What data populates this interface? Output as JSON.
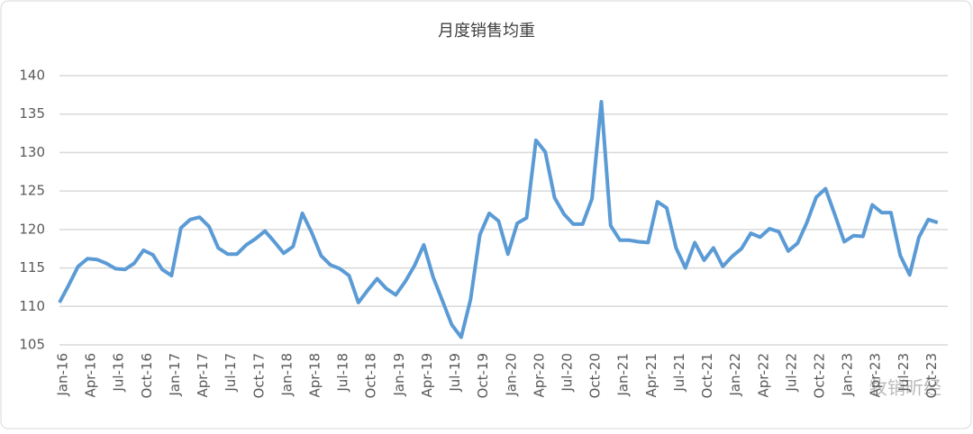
{
  "chart_data": {
    "type": "line",
    "title": "月度销售均重",
    "categories": [
      "Jan-16",
      null,
      null,
      "Apr-16",
      null,
      null,
      "Jul-16",
      null,
      null,
      "Oct-16",
      null,
      null,
      "Jan-17",
      null,
      null,
      "Apr-17",
      null,
      null,
      "Jul-17",
      null,
      null,
      "Oct-17",
      null,
      null,
      "Jan-18",
      null,
      null,
      "Apr-18",
      null,
      null,
      "Jul-18",
      null,
      null,
      "Oct-18",
      null,
      null,
      "Jan-19",
      null,
      null,
      "Apr-19",
      null,
      null,
      "Jul-19",
      null,
      null,
      "Oct-19",
      null,
      null,
      "Jan-20",
      null,
      null,
      "Apr-20",
      null,
      null,
      "Jul-20",
      null,
      null,
      "Oct-20",
      null,
      null,
      "Jan-21",
      null,
      null,
      "Apr-21",
      null,
      null,
      "Jul-21",
      null,
      null,
      "Oct-21",
      null,
      null,
      "Jan-22",
      null,
      null,
      "Apr-22",
      null,
      null,
      "Jul-22",
      null,
      null,
      "Oct-22",
      null,
      null,
      "Jan-23",
      null,
      null,
      "Apr-23",
      null,
      null,
      "Jul-23",
      null,
      null,
      "Oct-23",
      null
    ],
    "series": [
      {
        "name": "月度销售均重",
        "color": "#5b9bd5",
        "values": [
          110.5,
          112.8,
          115.2,
          116.2,
          116.1,
          115.6,
          114.9,
          114.8,
          115.6,
          117.3,
          116.7,
          114.8,
          114.0,
          120.2,
          121.3,
          121.6,
          120.4,
          117.6,
          116.8,
          116.8,
          118.0,
          118.8,
          119.8,
          118.4,
          116.9,
          117.8,
          122.1,
          119.6,
          116.6,
          115.4,
          114.9,
          114.0,
          110.5,
          112.1,
          113.6,
          112.3,
          111.5,
          113.2,
          115.3,
          118.0,
          113.8,
          110.7,
          107.6,
          106.0,
          110.9,
          119.3,
          122.1,
          121.1,
          116.8,
          120.8,
          121.5,
          131.6,
          130.1,
          124.1,
          122.0,
          120.7,
          120.7,
          124.0,
          136.6,
          120.5,
          118.6,
          118.6,
          118.4,
          118.3,
          123.6,
          122.8,
          117.6,
          115.0,
          118.3,
          116.0,
          117.6,
          115.2,
          116.5,
          117.5,
          119.5,
          119.0,
          120.1,
          119.7,
          117.2,
          118.2,
          120.9,
          124.2,
          125.3,
          121.9,
          118.4,
          119.2,
          119.1,
          123.2,
          122.2,
          122.2,
          116.6,
          114.1,
          119.0,
          121.3,
          120.9
        ]
      }
    ],
    "ylim": [
      105,
      140
    ],
    "yticks": [
      105,
      110,
      115,
      120,
      125,
      130,
      135,
      140
    ],
    "grid": true,
    "watermark": "牧销昕经"
  }
}
